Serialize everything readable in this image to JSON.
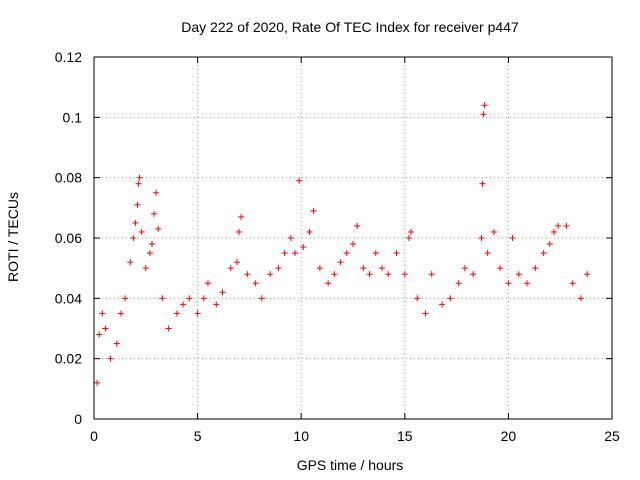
{
  "chart_data": {
    "type": "scatter",
    "title": "Day 222 of 2020, Rate Of TEC Index for receiver p447",
    "xlabel": "GPS time / hours",
    "ylabel": "ROTI / TECUs",
    "xlim": [
      0,
      25
    ],
    "ylim": [
      0,
      0.12
    ],
    "xticks": [
      0,
      5,
      10,
      15,
      20,
      25
    ],
    "xtick_labels": [
      "0",
      "5",
      "10",
      "15",
      "20",
      "25"
    ],
    "yticks": [
      0,
      0.02,
      0.04,
      0.06,
      0.08,
      0.1,
      0.12
    ],
    "ytick_labels": [
      "0",
      "0.02",
      "0.04",
      "0.06",
      "0.08",
      "0.1",
      "0.12"
    ],
    "grid": true,
    "marker": "+",
    "color": "#ff0000",
    "series": [
      {
        "values": [
          [
            0.15,
            0.012
          ],
          [
            0.25,
            0.028
          ],
          [
            0.4,
            0.035
          ],
          [
            0.55,
            0.03
          ],
          [
            0.8,
            0.02
          ],
          [
            1.1,
            0.025
          ],
          [
            1.3,
            0.035
          ],
          [
            1.5,
            0.04
          ],
          [
            1.75,
            0.052
          ],
          [
            1.9,
            0.06
          ],
          [
            2.0,
            0.065
          ],
          [
            2.1,
            0.071
          ],
          [
            2.15,
            0.078
          ],
          [
            2.2,
            0.08
          ],
          [
            2.3,
            0.062
          ],
          [
            2.5,
            0.05
          ],
          [
            2.7,
            0.055
          ],
          [
            2.8,
            0.058
          ],
          [
            2.9,
            0.068
          ],
          [
            3.0,
            0.075
          ],
          [
            3.1,
            0.063
          ],
          [
            3.3,
            0.04
          ],
          [
            3.6,
            0.03
          ],
          [
            4.0,
            0.035
          ],
          [
            4.3,
            0.038
          ],
          [
            4.6,
            0.04
          ],
          [
            5.0,
            0.035
          ],
          [
            5.3,
            0.04
          ],
          [
            5.5,
            0.045
          ],
          [
            5.9,
            0.038
          ],
          [
            6.2,
            0.042
          ],
          [
            6.6,
            0.05
          ],
          [
            6.9,
            0.052
          ],
          [
            7.0,
            0.062
          ],
          [
            7.1,
            0.067
          ],
          [
            7.4,
            0.048
          ],
          [
            7.8,
            0.045
          ],
          [
            8.1,
            0.04
          ],
          [
            8.5,
            0.048
          ],
          [
            8.9,
            0.05
          ],
          [
            9.2,
            0.055
          ],
          [
            9.5,
            0.06
          ],
          [
            9.7,
            0.055
          ],
          [
            9.9,
            0.079
          ],
          [
            10.1,
            0.057
          ],
          [
            10.4,
            0.062
          ],
          [
            10.6,
            0.069
          ],
          [
            10.9,
            0.05
          ],
          [
            11.3,
            0.045
          ],
          [
            11.6,
            0.048
          ],
          [
            11.9,
            0.052
          ],
          [
            12.2,
            0.055
          ],
          [
            12.5,
            0.058
          ],
          [
            12.7,
            0.064
          ],
          [
            13.0,
            0.05
          ],
          [
            13.3,
            0.048
          ],
          [
            13.6,
            0.055
          ],
          [
            13.9,
            0.05
          ],
          [
            14.2,
            0.048
          ],
          [
            14.6,
            0.055
          ],
          [
            15.0,
            0.048
          ],
          [
            15.2,
            0.06
          ],
          [
            15.3,
            0.062
          ],
          [
            15.6,
            0.04
          ],
          [
            16.0,
            0.035
          ],
          [
            16.3,
            0.048
          ],
          [
            16.8,
            0.038
          ],
          [
            17.2,
            0.04
          ],
          [
            17.6,
            0.045
          ],
          [
            17.9,
            0.05
          ],
          [
            18.3,
            0.048
          ],
          [
            18.7,
            0.06
          ],
          [
            18.75,
            0.078
          ],
          [
            18.8,
            0.101
          ],
          [
            18.85,
            0.104
          ],
          [
            19.0,
            0.055
          ],
          [
            19.3,
            0.062
          ],
          [
            19.6,
            0.05
          ],
          [
            20.0,
            0.045
          ],
          [
            20.2,
            0.06
          ],
          [
            20.5,
            0.048
          ],
          [
            20.9,
            0.045
          ],
          [
            21.3,
            0.05
          ],
          [
            21.7,
            0.055
          ],
          [
            22.0,
            0.058
          ],
          [
            22.2,
            0.062
          ],
          [
            22.4,
            0.064
          ],
          [
            22.8,
            0.064
          ],
          [
            23.1,
            0.045
          ],
          [
            23.5,
            0.04
          ],
          [
            23.8,
            0.048
          ]
        ]
      }
    ]
  }
}
